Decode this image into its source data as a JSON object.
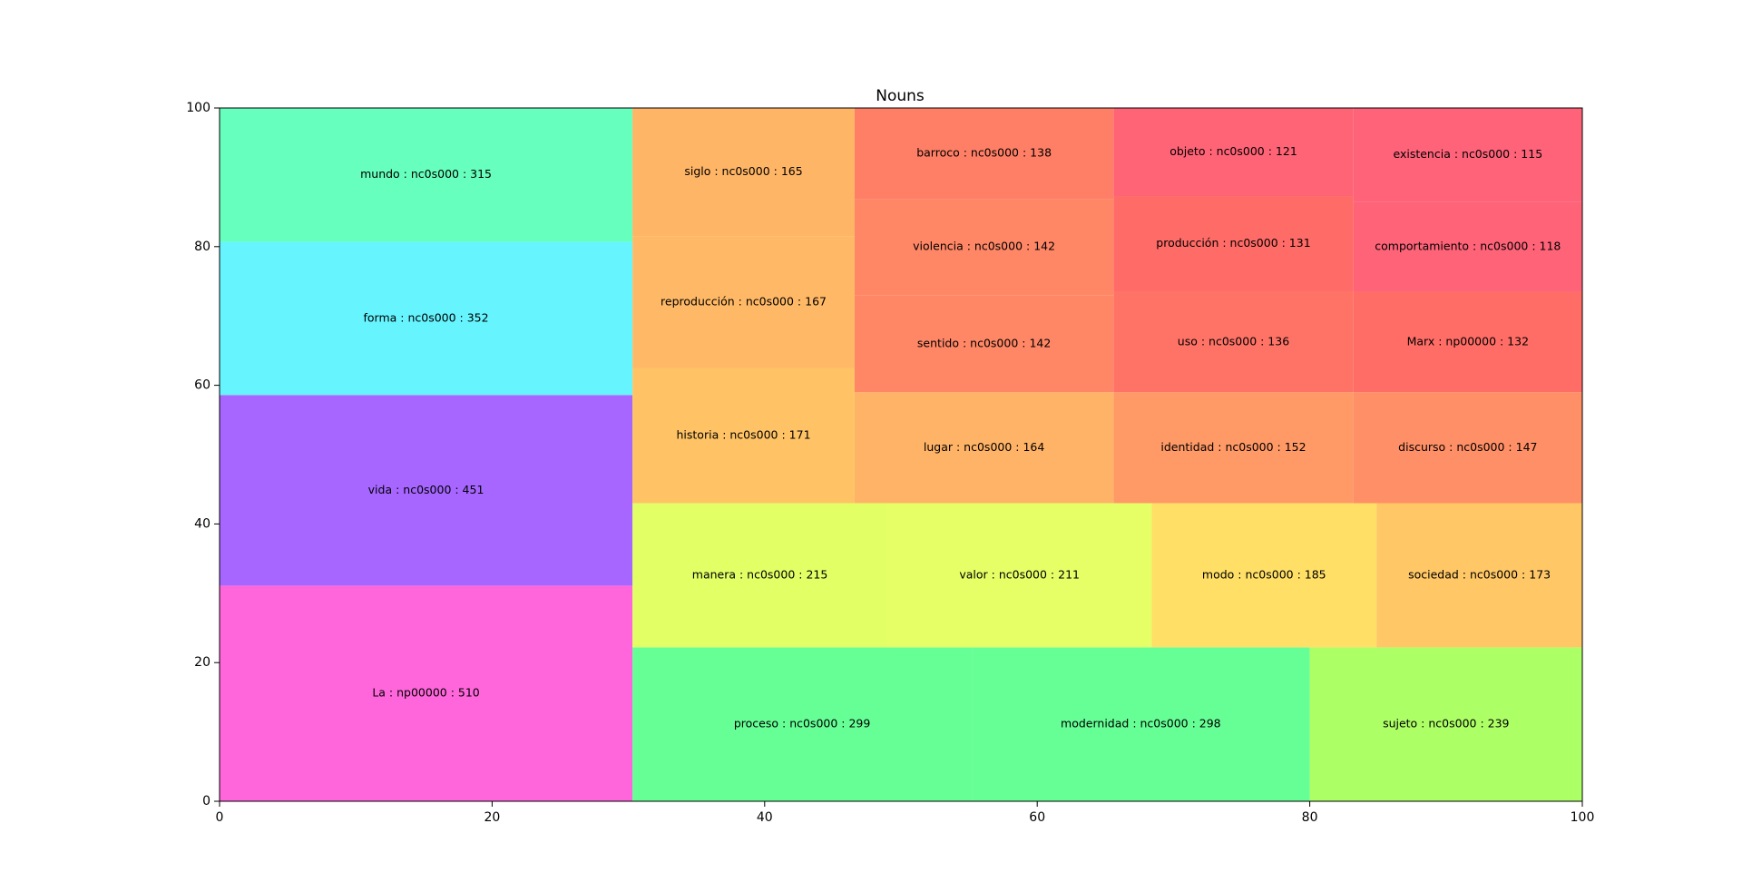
{
  "chart_data": {
    "type": "treemap",
    "title": "Nouns",
    "xlim": [
      0,
      100
    ],
    "ylim": [
      0,
      100
    ],
    "xticks": [
      "0",
      "20",
      "40",
      "60",
      "80",
      "100"
    ],
    "yticks": [
      "0",
      "20",
      "40",
      "60",
      "80",
      "100"
    ],
    "cells": [
      {
        "label": "La : np00000 : 510",
        "value": 510,
        "x0": 0,
        "y0": 0,
        "x1": 30.3,
        "y1": 31.1,
        "color": "#ff66db"
      },
      {
        "label": "vida : nc0s000 : 451",
        "value": 451,
        "x0": 0,
        "y0": 31.1,
        "x1": 30.3,
        "y1": 58.6,
        "color": "#a666ff"
      },
      {
        "label": "forma : nc0s000 : 352",
        "value": 352,
        "x0": 0,
        "y0": 58.6,
        "x1": 30.3,
        "y1": 80.7,
        "color": "#66f5ff"
      },
      {
        "label": "mundo : nc0s000 : 315",
        "value": 315,
        "x0": 0,
        "y0": 80.7,
        "x1": 30.3,
        "y1": 100,
        "color": "#66ffbd"
      },
      {
        "label": "proceso : nc0s000 : 299",
        "value": 299,
        "x0": 30.3,
        "y0": 0,
        "x1": 55.2,
        "y1": 22.2,
        "color": "#66ff96"
      },
      {
        "label": "modernidad : nc0s000 : 298",
        "value": 298,
        "x0": 55.2,
        "y0": 0,
        "x1": 80.0,
        "y1": 22.2,
        "color": "#66ff96"
      },
      {
        "label": "sujeto : nc0s000 : 239",
        "value": 239,
        "x0": 80.0,
        "y0": 0,
        "x1": 100,
        "y1": 22.2,
        "color": "#adff66"
      },
      {
        "label": "manera : nc0s000 : 215",
        "value": 215,
        "x0": 30.3,
        "y0": 22.2,
        "x1": 49.0,
        "y1": 43.0,
        "color": "#e2ff66"
      },
      {
        "label": "valor : nc0s000 : 211",
        "value": 211,
        "x0": 49.0,
        "y0": 22.2,
        "x1": 68.4,
        "y1": 43.0,
        "color": "#e6ff66"
      },
      {
        "label": "modo : nc0s000 : 185",
        "value": 185,
        "x0": 68.4,
        "y0": 22.2,
        "x1": 84.9,
        "y1": 43.0,
        "color": "#ffdf66"
      },
      {
        "label": "sociedad : nc0s000 : 173",
        "value": 173,
        "x0": 84.9,
        "y0": 22.2,
        "x1": 100,
        "y1": 43.0,
        "color": "#ffc766"
      },
      {
        "label": "historia : nc0s000 : 171",
        "value": 171,
        "x0": 30.3,
        "y0": 43.0,
        "x1": 46.6,
        "y1": 62.5,
        "color": "#ffc366"
      },
      {
        "label": "reproducción : nc0s000 : 167",
        "value": 167,
        "x0": 30.3,
        "y0": 62.5,
        "x1": 46.6,
        "y1": 81.5,
        "color": "#ffb966"
      },
      {
        "label": "siglo : nc0s000 : 165",
        "value": 165,
        "x0": 30.3,
        "y0": 81.5,
        "x1": 46.6,
        "y1": 100,
        "color": "#ffb566"
      },
      {
        "label": "lugar : nc0s000 : 164",
        "value": 164,
        "x0": 46.6,
        "y0": 43.0,
        "x1": 65.6,
        "y1": 59.0,
        "color": "#ffb366"
      },
      {
        "label": "sentido : nc0s000 : 142",
        "value": 142,
        "x0": 46.6,
        "y0": 59.0,
        "x1": 65.6,
        "y1": 73.0,
        "color": "#ff8766"
      },
      {
        "label": "violencia : nc0s000 : 142",
        "value": 142,
        "x0": 46.6,
        "y0": 73.0,
        "x1": 65.6,
        "y1": 86.9,
        "color": "#ff8766"
      },
      {
        "label": "barroco : nc0s000 : 138",
        "value": 138,
        "x0": 46.6,
        "y0": 86.9,
        "x1": 65.6,
        "y1": 100,
        "color": "#ff7f66"
      },
      {
        "label": "identidad : nc0s000 : 152",
        "value": 152,
        "x0": 65.6,
        "y0": 43.0,
        "x1": 83.2,
        "y1": 59.0,
        "color": "#ff9966"
      },
      {
        "label": "uso : nc0s000 : 136",
        "value": 136,
        "x0": 65.6,
        "y0": 59.0,
        "x1": 83.2,
        "y1": 73.5,
        "color": "#ff7366"
      },
      {
        "label": "producción : nc0s000 : 131",
        "value": 131,
        "x0": 65.6,
        "y0": 73.5,
        "x1": 83.2,
        "y1": 87.3,
        "color": "#ff6b66"
      },
      {
        "label": "objeto : nc0s000 : 121",
        "value": 121,
        "x0": 65.6,
        "y0": 87.3,
        "x1": 83.2,
        "y1": 100,
        "color": "#ff6376"
      },
      {
        "label": "discurso : nc0s000 : 147",
        "value": 147,
        "x0": 83.2,
        "y0": 43.0,
        "x1": 100,
        "y1": 59.0,
        "color": "#ff8f66"
      },
      {
        "label": "Marx : np00000 : 132",
        "value": 132,
        "x0": 83.2,
        "y0": 59.0,
        "x1": 100,
        "y1": 73.5,
        "color": "#ff6d66"
      },
      {
        "label": "comportamiento : nc0s000 : 118",
        "value": 118,
        "x0": 83.2,
        "y0": 73.5,
        "x1": 100,
        "y1": 86.5,
        "color": "#ff6378"
      },
      {
        "label": "existencia : nc0s000 : 115",
        "value": 115,
        "x0": 83.2,
        "y0": 86.5,
        "x1": 100,
        "y1": 100,
        "color": "#ff637a"
      }
    ]
  }
}
